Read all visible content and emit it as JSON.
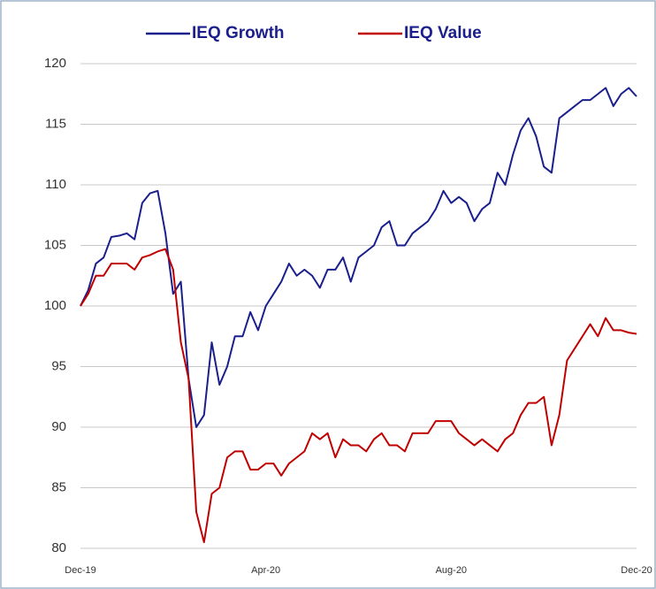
{
  "chart_data": {
    "type": "line",
    "categories": [
      "Dec-19",
      null,
      null,
      null,
      null,
      null,
      null,
      null,
      null,
      null,
      null,
      null,
      null,
      null,
      null,
      null,
      null,
      null,
      null,
      null,
      null,
      null,
      null,
      null,
      "Apr-20",
      null,
      null,
      null,
      null,
      null,
      null,
      null,
      null,
      null,
      null,
      null,
      null,
      null,
      null,
      null,
      null,
      null,
      null,
      null,
      null,
      null,
      null,
      null,
      "Aug-20",
      null,
      null,
      null,
      null,
      null,
      null,
      null,
      null,
      null,
      null,
      null,
      null,
      null,
      null,
      null,
      null,
      null,
      null,
      null,
      null,
      null,
      null,
      null,
      "Dec-20"
    ],
    "series": [
      {
        "name": "IEQ Growth",
        "color": "#1a1f8c",
        "values": [
          100,
          101.3,
          103.5,
          104,
          105.7,
          105.8,
          106,
          105.5,
          108.5,
          109.3,
          109.5,
          106,
          101,
          102,
          94,
          90,
          91,
          97,
          93.5,
          95,
          97.5,
          97.5,
          99.5,
          98,
          100,
          101,
          102,
          103.5,
          102.5,
          103,
          102.5,
          101.5,
          103,
          103,
          104,
          102,
          104,
          104.5,
          105,
          106.5,
          107,
          105,
          105,
          106,
          106.5,
          107,
          108,
          109.5,
          108.5,
          109,
          108.5,
          107,
          108,
          108.5,
          111,
          110,
          112.5,
          114.5,
          115.5,
          114,
          111.5,
          111,
          115.5,
          116,
          116.5,
          117,
          117,
          117.5,
          118,
          116.5,
          117.5,
          118,
          117.3
        ]
      },
      {
        "name": "IEQ Value",
        "color": "#c00000",
        "values": [
          100,
          101,
          102.5,
          102.5,
          103.5,
          103.5,
          103.5,
          103,
          104,
          104.2,
          104.5,
          104.7,
          103,
          97,
          94,
          83,
          80.5,
          84.5,
          85,
          87.5,
          88,
          88,
          86.5,
          86.5,
          87,
          87,
          86,
          87,
          87.5,
          88,
          89.5,
          89,
          89.5,
          87.5,
          89,
          88.5,
          88.5,
          88,
          89,
          89.5,
          88.5,
          88.5,
          88,
          89.5,
          89.5,
          89.5,
          90.5,
          90.5,
          90.5,
          89.5,
          89,
          88.5,
          89,
          88.5,
          88,
          89,
          89.5,
          91,
          92,
          92,
          92.5,
          88.5,
          91,
          95.5,
          96.5,
          97.5,
          98.5,
          97.5,
          99,
          98,
          98,
          97.8,
          97.7
        ]
      }
    ],
    "ylim": [
      80,
      120
    ],
    "yticks": [
      80,
      85,
      90,
      95,
      100,
      105,
      110,
      115,
      120
    ],
    "grid": true,
    "legend": "top"
  }
}
